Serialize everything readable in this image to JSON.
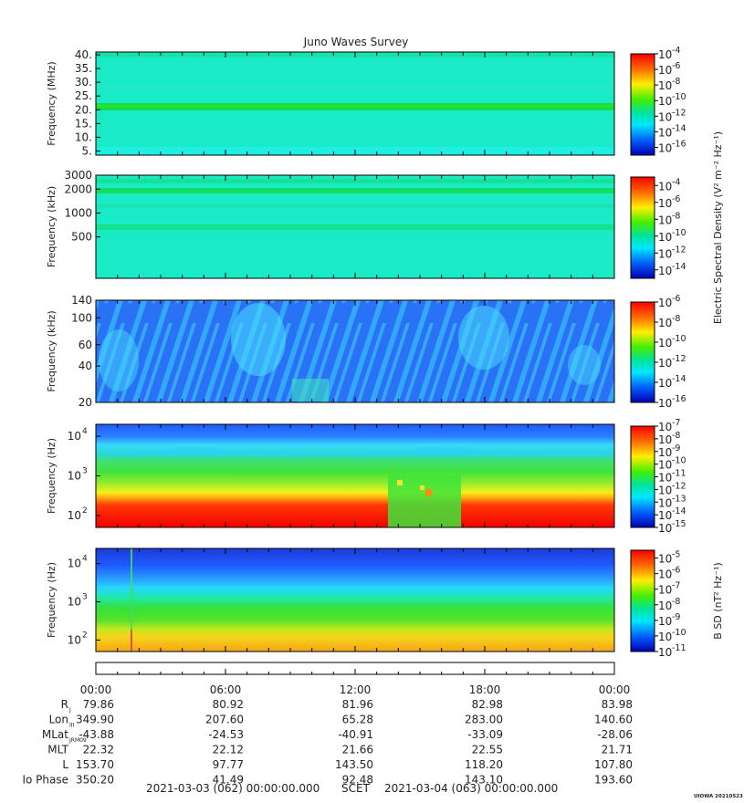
{
  "chart_data": {
    "type": "heatmap",
    "title": "Juno Waves Survey",
    "panels": [
      {
        "ylabel": "Frequency (MHz)",
        "yscale": "linear",
        "ylim": [
          3.5,
          41
        ],
        "yticks": [
          "40.",
          "35.",
          "30.",
          "25.",
          "20.",
          "15.",
          "10.",
          "5."
        ],
        "ytick_values": [
          40,
          35,
          30,
          25,
          20,
          15,
          10,
          5
        ],
        "colorbar_exponents": [
          "-4",
          "-6",
          "-8",
          "-10",
          "-12",
          "-14",
          "-16"
        ],
        "colorbar_log_range": [
          -4,
          -17
        ],
        "colorbar_label": ""
      },
      {
        "ylabel": "Frequency (kHz)",
        "yscale": "log",
        "ylim": [
          150,
          3000
        ],
        "yticks": [
          "3000",
          "2000",
          "1000",
          "500"
        ],
        "ytick_values": [
          3000,
          2000,
          1000,
          500
        ],
        "colorbar_exponents": [
          "-4",
          "-6",
          "-8",
          "-10",
          "-12",
          "-14"
        ],
        "colorbar_log_range": [
          -3,
          -15
        ],
        "colorbar_label": "Electric Spectral Density (V² m⁻² Hz⁻¹)"
      },
      {
        "ylabel": "Frequency (kHz)",
        "yscale": "log",
        "ylim": [
          20,
          140
        ],
        "yticks": [
          "140",
          "100",
          "60",
          "40",
          "20"
        ],
        "ytick_values": [
          140,
          100,
          60,
          40,
          20
        ],
        "colorbar_exponents": [
          "-6",
          "-8",
          "-10",
          "-12",
          "-14",
          "-16"
        ],
        "colorbar_log_range": [
          -6,
          -16
        ],
        "colorbar_label": ""
      },
      {
        "ylabel": "Frequency (Hz)",
        "yscale": "log",
        "ylim": [
          50,
          20000
        ],
        "ytick_labels": [
          {
            "base": "10",
            "exp": "4",
            "value": 10000
          },
          {
            "base": "10",
            "exp": "3",
            "value": 1000
          },
          {
            "base": "10",
            "exp": "2",
            "value": 100
          }
        ],
        "colorbar_exponents": [
          "-7",
          "-8",
          "-9",
          "-10",
          "-11",
          "-12",
          "-13",
          "-14",
          "-15"
        ],
        "colorbar_log_range": [
          -7,
          -15
        ],
        "colorbar_label": ""
      },
      {
        "ylabel": "Frequency (Hz)",
        "yscale": "log",
        "ylim": [
          50,
          25000
        ],
        "ytick_labels": [
          {
            "base": "10",
            "exp": "4",
            "value": 10000
          },
          {
            "base": "10",
            "exp": "3",
            "value": 1000
          },
          {
            "base": "10",
            "exp": "2",
            "value": 100
          }
        ],
        "colorbar_exponents": [
          "-5",
          "-6",
          "-7",
          "-8",
          "-9",
          "-10",
          "-11"
        ],
        "colorbar_log_range": [
          -4.5,
          -11
        ],
        "colorbar_label": "B SD (nT² Hz⁻¹)"
      }
    ],
    "x_ticks": [
      "00:00",
      "06:00",
      "12:00",
      "18:00",
      "00:00"
    ],
    "ephemeris": [
      {
        "label": "R",
        "sub": "J",
        "values": [
          "79.86",
          "80.92",
          "81.96",
          "82.98",
          "83.98"
        ]
      },
      {
        "label": "Lon",
        "sub": "III",
        "values": [
          "349.90",
          "207.60",
          "65.28",
          "283.00",
          "140.60"
        ]
      },
      {
        "label": "MLat",
        "sub": "JRM09",
        "values": [
          "-43.88",
          "-24.53",
          "-40.91",
          "-33.09",
          "-28.06"
        ]
      },
      {
        "label": "MLT",
        "sub": "",
        "values": [
          "22.32",
          "22.12",
          "21.66",
          "22.55",
          "21.71"
        ]
      },
      {
        "label": "L",
        "sub": "",
        "values": [
          "153.70",
          "97.77",
          "143.50",
          "118.20",
          "107.80"
        ]
      },
      {
        "label": "Io Phase",
        "sub": "",
        "values": [
          "350.20",
          "41.49",
          "92.48",
          "143.10",
          "193.60"
        ]
      }
    ],
    "footer": {
      "start": "2021-03-03 (062) 00:00:00.000",
      "scet": "SCET",
      "end": "2021-03-04 (063) 00:00:00.000",
      "stamp": "UIOWA 20210523"
    }
  }
}
